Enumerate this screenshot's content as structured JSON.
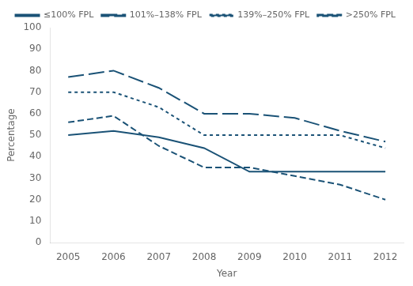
{
  "chart_data": {
    "type": "line",
    "x": [
      2005,
      2006,
      2007,
      2008,
      2009,
      2010,
      2011,
      2012
    ],
    "series": [
      {
        "name": "≤100% FPL",
        "color": "#1a5276",
        "line_style": "solid",
        "values": [
          50,
          52,
          49,
          44,
          33,
          33,
          33,
          33
        ]
      },
      {
        "name": "101%–138% FPL",
        "color": "#1a5276",
        "line_style": "long_dash",
        "values": [
          77,
          80,
          72,
          60,
          60,
          58,
          52,
          47
        ]
      },
      {
        "name": "139%–250% FPL",
        "color": "#1a5276",
        "line_style": "dotted",
        "values": [
          70,
          70,
          63,
          50,
          50,
          50,
          50,
          44
        ]
      },
      {
        "name": ">250% FPL",
        "color": "#1a5276",
        "line_style": "short_dash",
        "values": [
          56,
          59,
          45,
          35,
          35,
          31,
          27,
          20
        ]
      }
    ],
    "xlabel": "Year",
    "ylabel": "Percentage",
    "xlim": [
      2004.6,
      2012.4
    ],
    "xticks": [
      2005,
      2006,
      2007,
      2008,
      2009,
      2010,
      2011,
      2012
    ],
    "ylim": [
      0,
      100
    ],
    "yticks": [
      0,
      10,
      20,
      30,
      40,
      50,
      60,
      70,
      80,
      90,
      100
    ],
    "grid": false,
    "legend": "upper right"
  }
}
